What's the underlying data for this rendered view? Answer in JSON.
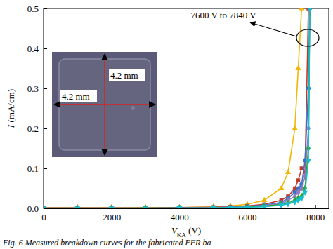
{
  "chart_data": {
    "type": "line",
    "xlabel": "VKA (V)",
    "ylabel": "I (mA/cm)",
    "annotations": [
      "7600 V to 7840 V"
    ],
    "inset_labels": [
      "4.2 mm",
      "4.2 mm"
    ],
    "caption": "Fig. 6 Measured breakdown curves for the fabricated FFR ba",
    "x": [
      0,
      1000,
      2000,
      3000,
      4000,
      5000,
      5500,
      6000,
      6500,
      7000,
      7200,
      7400,
      7500,
      7600,
      7700,
      7800,
      7840
    ],
    "series": [
      {
        "color": "#f2b705",
        "marker": "triangle",
        "line_style": "solid",
        "values": [
          0.002,
          0.002,
          0.002,
          0.002,
          0.002,
          0.004,
          0.006,
          0.01,
          0.02,
          0.05,
          0.09,
          0.2,
          0.35,
          0.5,
          null,
          null,
          null
        ]
      },
      {
        "color": "#c0392b",
        "marker": "square",
        "line_style": "solid",
        "values": [
          0.001,
          0.001,
          0.001,
          0.001,
          0.002,
          0.003,
          0.004,
          0.006,
          0.01,
          0.02,
          0.03,
          0.05,
          0.07,
          0.1,
          0.09,
          0.5,
          null
        ]
      },
      {
        "color": "#3a6fc4",
        "marker": "circle",
        "line_style": "solid",
        "values": [
          0.001,
          0.001,
          0.001,
          0.001,
          0.001,
          0.002,
          0.003,
          0.005,
          0.008,
          0.015,
          0.025,
          0.04,
          0.05,
          0.06,
          0.12,
          0.3,
          0.5
        ]
      },
      {
        "color": "#8e7cc3",
        "marker": "diamond",
        "line_style": "solid",
        "values": [
          0.001,
          0.001,
          0.001,
          0.001,
          0.001,
          0.002,
          0.003,
          0.004,
          0.007,
          0.012,
          0.02,
          0.03,
          0.04,
          0.05,
          0.08,
          0.2,
          0.5
        ]
      },
      {
        "color": "#2ca02c",
        "marker": "diamond",
        "line_style": "solid",
        "values": [
          0.0,
          0.0,
          0.0,
          0.001,
          0.001,
          0.001,
          0.002,
          0.003,
          0.005,
          0.01,
          0.013,
          0.02,
          0.025,
          0.03,
          0.05,
          0.15,
          0.5
        ]
      },
      {
        "color": "#17becf",
        "marker": "triangle-down",
        "line_style": "solid",
        "values": [
          0.0,
          0.0,
          0.0,
          0.0,
          0.001,
          0.001,
          0.002,
          0.003,
          0.004,
          0.008,
          0.011,
          0.016,
          0.02,
          0.025,
          0.04,
          0.12,
          0.5
        ]
      }
    ],
    "xlim": [
      0,
      8400
    ],
    "xticks": [
      0,
      2000,
      4000,
      6000,
      8000
    ],
    "ylim": [
      0,
      0.5
    ],
    "yticks": [
      {
        "value": 0,
        "label": "0.0"
      },
      0.1,
      0.2,
      0.3,
      0.4,
      0.5
    ],
    "grid": false
  }
}
